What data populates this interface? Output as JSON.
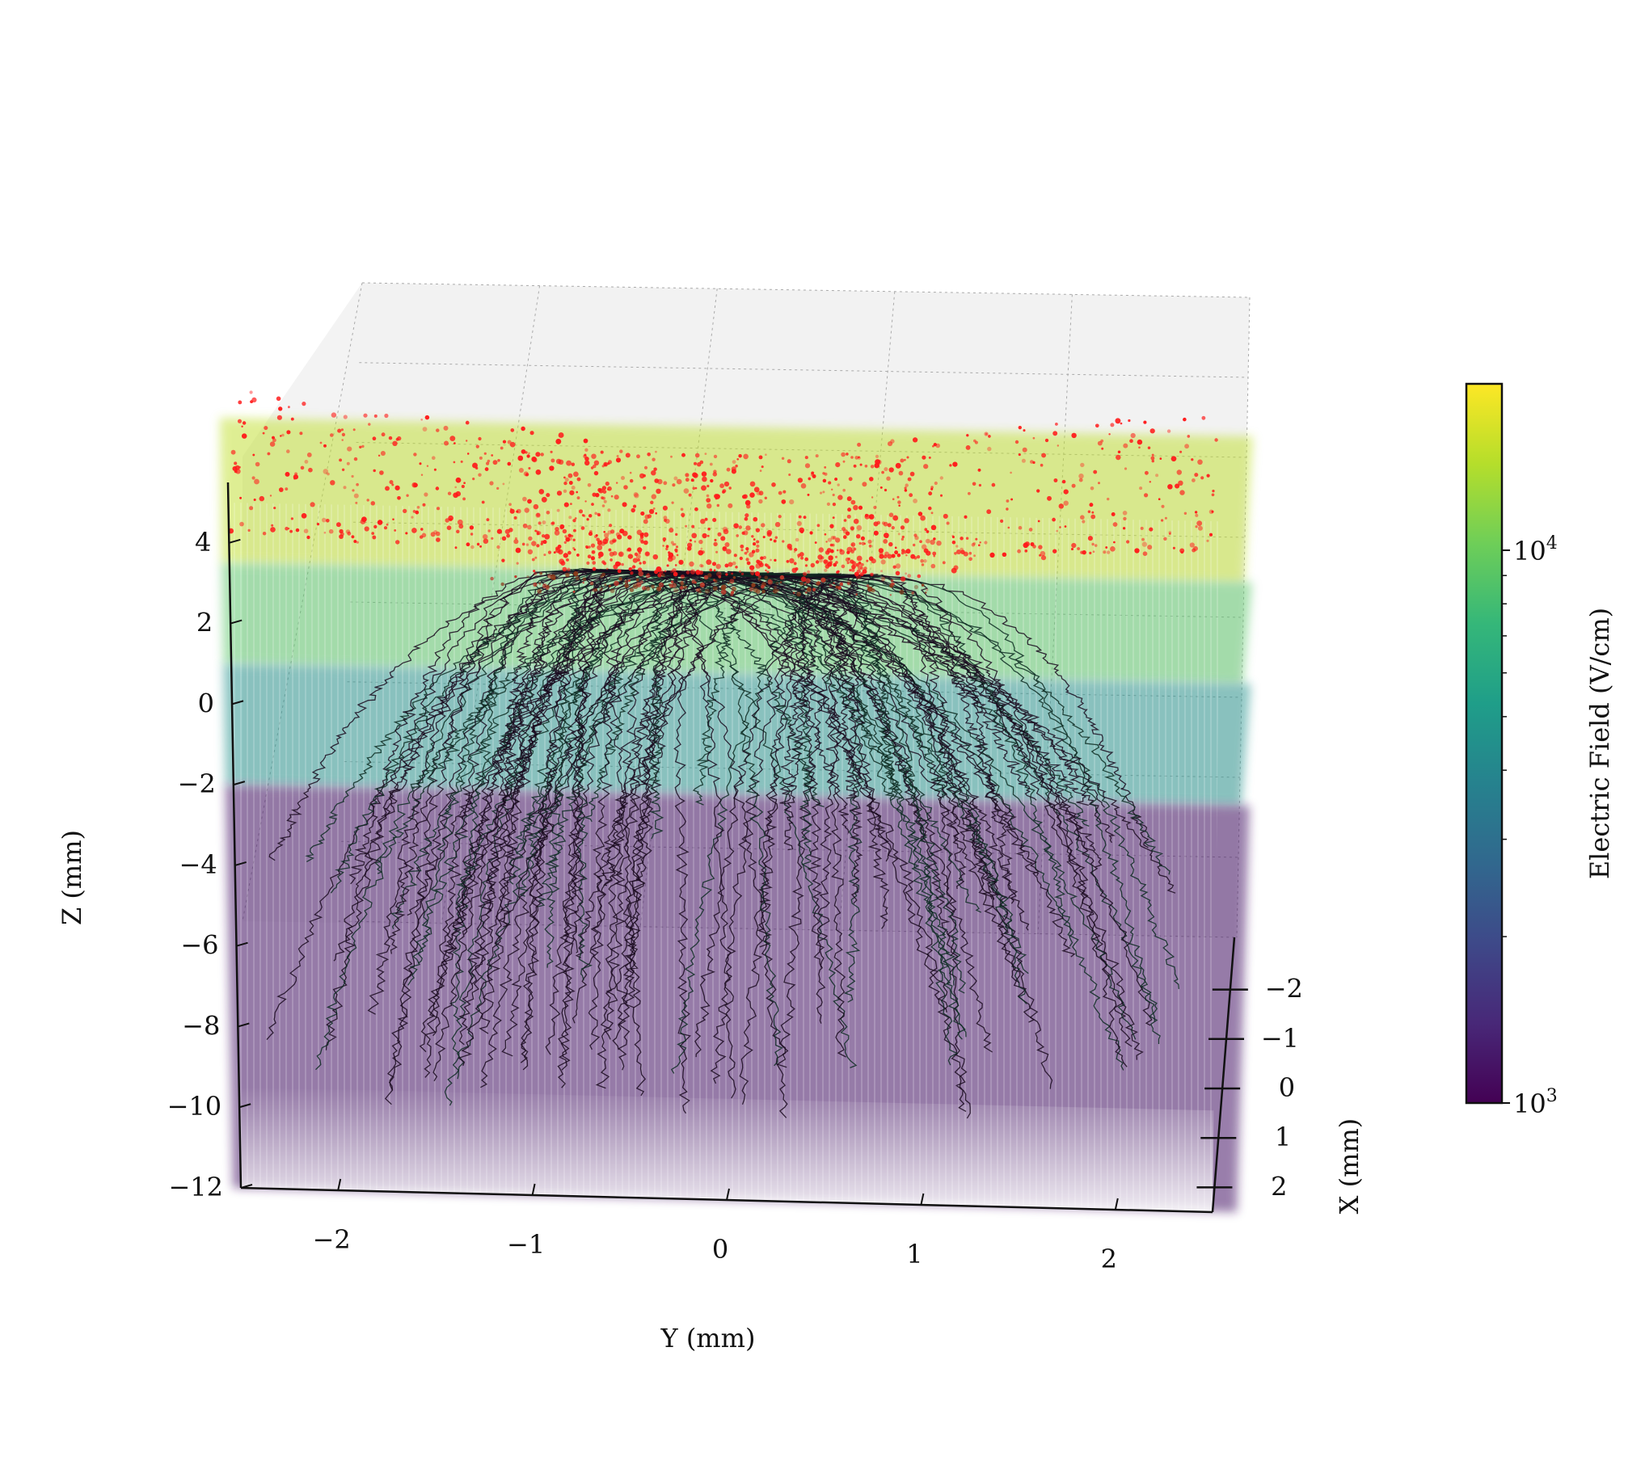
{
  "chart_data": {
    "type": "scatter",
    "projection": "3d",
    "title": "",
    "xlabel": "X (mm)",
    "ylabel": "Y (mm)",
    "zlabel": "Z (mm)",
    "xlim": [
      -2.5,
      2.5
    ],
    "ylim": [
      -2.5,
      2.5
    ],
    "zlim": [
      -12,
      5.5
    ],
    "x_ticks": [
      "−2",
      "−1",
      "0",
      "1",
      "2"
    ],
    "y_ticks": [
      "−2",
      "−1",
      "0",
      "1",
      "2"
    ],
    "z_ticks": [
      "4",
      "2",
      "0",
      "−2",
      "−4",
      "−6",
      "−8",
      "−10",
      "−12"
    ],
    "grid": true,
    "series": [
      {
        "kind": "volume-field",
        "colormap": "viridis",
        "layers": [
          {
            "z": [
              3.5,
              5.5
            ],
            "field_v_per_cm": 15000
          },
          {
            "z": [
              1.0,
              3.5
            ],
            "field_v_per_cm": 9000
          },
          {
            "z": [
              -2.0,
              1.0
            ],
            "field_v_per_cm": 4500
          },
          {
            "z": [
              -12.0,
              -2.0
            ],
            "field_v_per_cm": 1200
          }
        ]
      },
      {
        "kind": "drift-tracks",
        "color": "#111111",
        "start_region": {
          "z": 3.5,
          "x_spread": 0.8,
          "y_spread": 0.8
        },
        "end_region": {
          "z_range": [
            -10,
            -1
          ],
          "y_range": [
            -2.4,
            2.4
          ]
        }
      },
      {
        "kind": "point-cloud",
        "color": "#ff0000",
        "z_range": [
          2.5,
          5.5
        ]
      }
    ],
    "colorbar": {
      "label": "Electric Field (V/cm)",
      "scale": "log",
      "colormap": "viridis",
      "range": [
        1000,
        20000
      ],
      "tick_values": [
        1000,
        10000
      ],
      "tick_labels": [
        {
          "base": "10",
          "exp": "3"
        },
        {
          "base": "10",
          "exp": "4"
        }
      ],
      "colormap_stops": [
        "#440154",
        "#482878",
        "#3e4989",
        "#31688e",
        "#26828e",
        "#1f9e89",
        "#35b779",
        "#6ece58",
        "#b5de2b",
        "#fde725"
      ]
    }
  }
}
